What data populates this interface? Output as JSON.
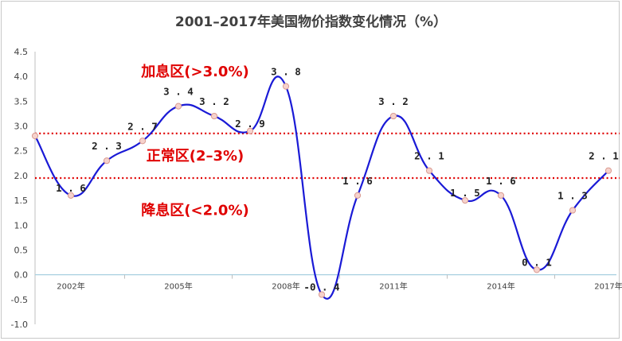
{
  "title": "2001–2017年美国物价指数变化情况（%）",
  "colors": {
    "line": "#1a1ad6",
    "marker_fill": "#f6d2cc",
    "marker_stroke": "#d99a90",
    "threshold": "#e00000",
    "zone_text": "#e00000",
    "axis": "#bfbfbf",
    "zero_line": "#a8cfe0"
  },
  "chart_data": {
    "type": "line",
    "title": "2001–2017年美国物价指数变化情况（%）",
    "x": [
      2001,
      2002,
      2003,
      2004,
      2005,
      2006,
      2007,
      2008,
      2009,
      2010,
      2011,
      2012,
      2013,
      2014,
      2015,
      2016,
      2017
    ],
    "series": [
      {
        "values": [
          2.8,
          1.6,
          2.3,
          2.7,
          3.4,
          3.2,
          2.9,
          3.8,
          -0.4,
          1.6,
          3.2,
          2.1,
          1.5,
          1.6,
          0.1,
          1.3,
          2.1
        ]
      }
    ],
    "data_labels": [
      "",
      "1.6",
      "2.3",
      "2.7",
      "3.4",
      "3.2",
      "2.9",
      "3.8",
      "-0.4",
      "1.6",
      "3.2",
      "2.1",
      "1.5",
      "1.6",
      "0.1",
      "1.3",
      "2.1"
    ],
    "ylim": [
      -1.0,
      4.5
    ],
    "yticks": [
      "4.5",
      "4.0",
      "3.5",
      "3.0",
      "2.5",
      "2.0",
      "1.5",
      "1.0",
      "0.5",
      "0.0",
      "-0.5",
      "-1.0"
    ],
    "xtick_labels": [
      {
        "x": 2002,
        "label": "2002年"
      },
      {
        "x": 2005,
        "label": "2005年"
      },
      {
        "x": 2008,
        "label": "2008年"
      },
      {
        "x": 2011,
        "label": "2011年"
      },
      {
        "x": 2014,
        "label": "2014年"
      },
      {
        "x": 2017,
        "label": "2017年"
      }
    ],
    "reference_lines": [
      {
        "y": 2.85,
        "style": "dotted"
      },
      {
        "y": 1.95,
        "style": "dotted"
      }
    ],
    "zones": [
      {
        "label": "加息区(>3.0%)",
        "y": 4.1
      },
      {
        "label": "正常区(2–3%)",
        "y": 2.4
      },
      {
        "label": "降息区(<2.0%)",
        "y": 1.3
      }
    ],
    "grid": false
  }
}
